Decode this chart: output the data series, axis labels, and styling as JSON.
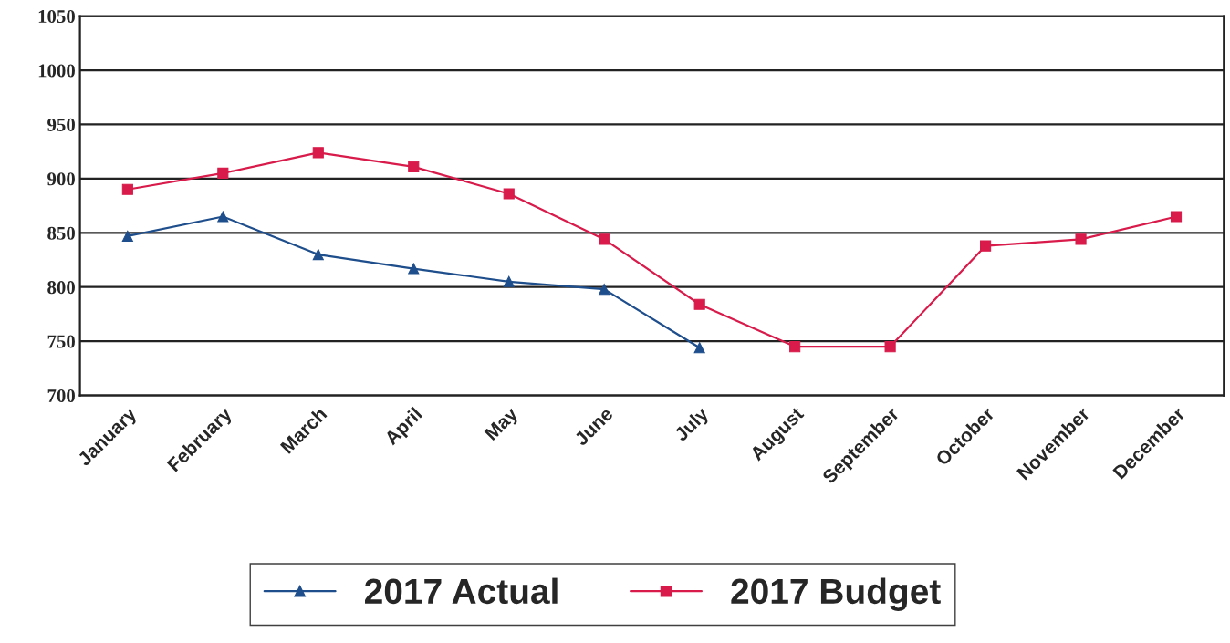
{
  "chart_data": {
    "type": "line",
    "categories": [
      "January",
      "February",
      "March",
      "April",
      "May",
      "June",
      "July",
      "August",
      "September",
      "October",
      "November",
      "December"
    ],
    "series": [
      {
        "name": "2017 Actual",
        "color": "#1f4e8c",
        "marker": "triangle",
        "values": [
          847,
          865,
          830,
          817,
          805,
          798,
          744,
          null,
          null,
          null,
          null,
          null
        ]
      },
      {
        "name": "2017 Budget",
        "color": "#d81b4a",
        "marker": "square",
        "values": [
          890,
          905,
          924,
          911,
          886,
          844,
          784,
          745,
          745,
          838,
          844,
          865
        ]
      }
    ],
    "ylim": [
      700,
      1050
    ],
    "yticks": [
      700,
      750,
      800,
      850,
      900,
      950,
      1000,
      1050
    ],
    "grid": "y",
    "legend": "bottom",
    "line_style": "solid"
  }
}
